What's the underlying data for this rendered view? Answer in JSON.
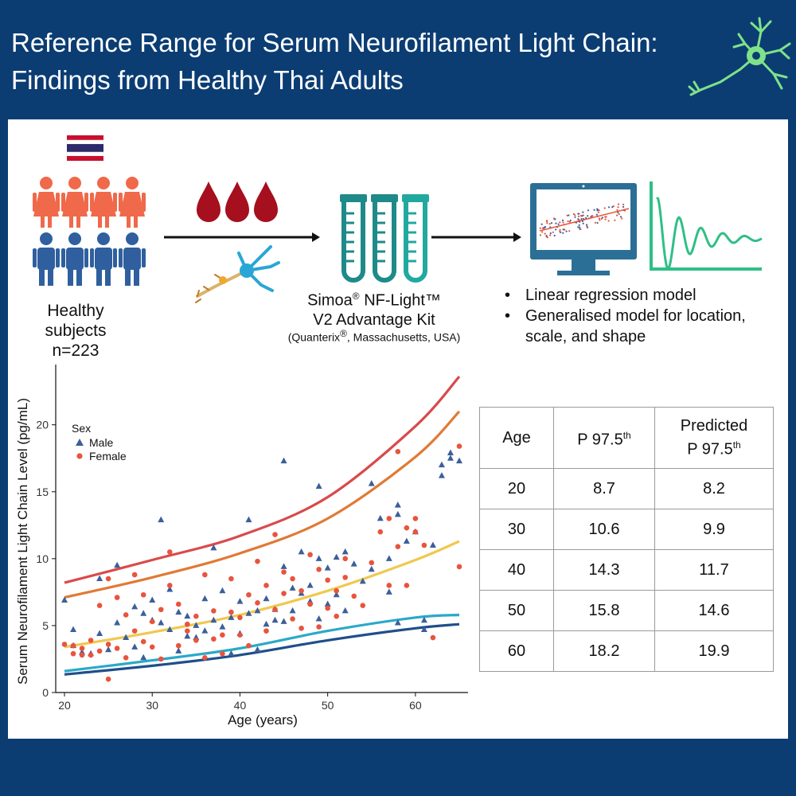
{
  "header": {
    "title_line1": "Reference Range for Serum Neurofilament Light Chain:",
    "title_line2": "Findings from Healthy Thai Adults"
  },
  "workflow": {
    "subjects_label": "Healthy subjects",
    "subjects_n": "n=223",
    "kit_line1_a": "Simoa",
    "kit_line1_reg": "®",
    "kit_line1_b": " NF-Light™",
    "kit_line2": "V2 Advantage Kit",
    "kit_maker_a": "(Quanterix",
    "kit_maker_reg": "®",
    "kit_maker_b": ", Massachusetts, USA)",
    "methods": [
      "Linear regression model",
      "Generalised model for location, scale, and shape"
    ]
  },
  "colors": {
    "background": "#0b3d73",
    "female_icon": "#f0694a",
    "male_icon": "#2f5f9e",
    "blood": "#a50f1e",
    "tube": "#1e8a8a",
    "monitor": "#2b6f96",
    "wave": "#2fbf86"
  },
  "icons": [
    "thai-flag-icon",
    "female-person-icon",
    "male-person-icon",
    "blood-drop-icon",
    "neuron-icon",
    "test-tube-icon",
    "monitor-icon",
    "waveform-icon",
    "arrow-icon"
  ],
  "chart_data": {
    "type": "scatter",
    "xlabel": "Age (years)",
    "ylabel": "Serum Neurofilament Light Chain Level (pg/mL)",
    "xlim": [
      19,
      66
    ],
    "ylim": [
      0,
      24.5
    ],
    "xticks": [
      20,
      30,
      40,
      50,
      60
    ],
    "yticks": [
      0,
      5,
      10,
      15,
      20
    ],
    "legend": {
      "title": "Sex",
      "placement": "top-left"
    },
    "series": [
      {
        "name": "Male",
        "marker": "triangle",
        "color": "#3b5f9a",
        "points": [
          [
            20,
            6.9
          ],
          [
            21,
            4.7
          ],
          [
            21,
            3.5
          ],
          [
            22,
            3.0
          ],
          [
            23,
            2.9
          ],
          [
            24,
            8.5
          ],
          [
            24,
            4.4
          ],
          [
            25,
            3.2
          ],
          [
            26,
            9.5
          ],
          [
            26,
            5.2
          ],
          [
            27,
            4.1
          ],
          [
            28,
            6.4
          ],
          [
            28,
            3.4
          ],
          [
            29,
            5.9
          ],
          [
            29,
            2.6
          ],
          [
            30,
            6.9
          ],
          [
            30,
            5.4
          ],
          [
            31,
            12.9
          ],
          [
            31,
            5.2
          ],
          [
            32,
            7.7
          ],
          [
            32,
            4.7
          ],
          [
            33,
            6.0
          ],
          [
            33,
            3.1
          ],
          [
            34,
            4.2
          ],
          [
            34,
            5.7
          ],
          [
            35,
            5.0
          ],
          [
            35,
            4.1
          ],
          [
            36,
            7.0
          ],
          [
            36,
            4.6
          ],
          [
            37,
            10.8
          ],
          [
            37,
            5.4
          ],
          [
            38,
            7.6
          ],
          [
            38,
            4.9
          ],
          [
            39,
            5.6
          ],
          [
            39,
            2.9
          ],
          [
            40,
            6.8
          ],
          [
            40,
            4.4
          ],
          [
            41,
            12.9
          ],
          [
            41,
            5.9
          ],
          [
            42,
            6.1
          ],
          [
            42,
            3.2
          ],
          [
            43,
            7.0
          ],
          [
            43,
            5.1
          ],
          [
            44,
            5.4
          ],
          [
            44,
            6.2
          ],
          [
            45,
            17.3
          ],
          [
            45,
            9.4
          ],
          [
            45,
            5.3
          ],
          [
            46,
            7.8
          ],
          [
            46,
            6.1
          ],
          [
            47,
            10.5
          ],
          [
            47,
            7.4
          ],
          [
            48,
            8.0
          ],
          [
            48,
            6.8
          ],
          [
            49,
            15.4
          ],
          [
            49,
            10.0
          ],
          [
            49,
            5.5
          ],
          [
            50,
            9.3
          ],
          [
            50,
            6.6
          ],
          [
            51,
            10.1
          ],
          [
            51,
            7.3
          ],
          [
            52,
            10.5
          ],
          [
            52,
            6.1
          ],
          [
            53,
            9.6
          ],
          [
            54,
            8.3
          ],
          [
            55,
            15.6
          ],
          [
            55,
            9.2
          ],
          [
            56,
            13.0
          ],
          [
            57,
            10.0
          ],
          [
            57,
            7.5
          ],
          [
            58,
            14.0
          ],
          [
            58,
            13.3
          ],
          [
            58,
            5.2
          ],
          [
            59,
            11.3
          ],
          [
            60,
            12.0
          ],
          [
            61,
            5.4
          ],
          [
            61,
            4.7
          ],
          [
            62,
            11.0
          ],
          [
            63,
            17.0
          ],
          [
            63,
            16.2
          ],
          [
            64,
            17.5
          ],
          [
            64,
            17.9
          ],
          [
            65,
            17.3
          ]
        ]
      },
      {
        "name": "Female",
        "marker": "circle",
        "color": "#e8543d",
        "points": [
          [
            20,
            3.6
          ],
          [
            21,
            3.5
          ],
          [
            21,
            2.9
          ],
          [
            22,
            2.8
          ],
          [
            22,
            3.3
          ],
          [
            23,
            3.9
          ],
          [
            23,
            2.8
          ],
          [
            24,
            3.1
          ],
          [
            24,
            6.5
          ],
          [
            25,
            3.6
          ],
          [
            25,
            1.0
          ],
          [
            25,
            8.5
          ],
          [
            26,
            3.3
          ],
          [
            26,
            7.1
          ],
          [
            27,
            2.6
          ],
          [
            27,
            5.8
          ],
          [
            28,
            4.6
          ],
          [
            28,
            8.8
          ],
          [
            29,
            3.8
          ],
          [
            29,
            7.3
          ],
          [
            30,
            3.4
          ],
          [
            30,
            5.3
          ],
          [
            31,
            6.2
          ],
          [
            31,
            2.5
          ],
          [
            32,
            10.5
          ],
          [
            32,
            8.0
          ],
          [
            33,
            3.5
          ],
          [
            33,
            6.6
          ],
          [
            34,
            5.1
          ],
          [
            34,
            4.6
          ],
          [
            35,
            3.9
          ],
          [
            35,
            5.7
          ],
          [
            36,
            2.6
          ],
          [
            36,
            8.8
          ],
          [
            37,
            4.0
          ],
          [
            37,
            6.1
          ],
          [
            38,
            4.3
          ],
          [
            38,
            2.9
          ],
          [
            39,
            6.0
          ],
          [
            39,
            8.5
          ],
          [
            40,
            5.6
          ],
          [
            40,
            4.3
          ],
          [
            41,
            3.5
          ],
          [
            41,
            7.3
          ],
          [
            42,
            6.7
          ],
          [
            42,
            9.8
          ],
          [
            43,
            4.6
          ],
          [
            43,
            8.0
          ],
          [
            44,
            6.2
          ],
          [
            44,
            11.8
          ],
          [
            45,
            7.4
          ],
          [
            45,
            9.0
          ],
          [
            46,
            5.5
          ],
          [
            46,
            8.5
          ],
          [
            47,
            7.6
          ],
          [
            47,
            4.8
          ],
          [
            48,
            10.3
          ],
          [
            48,
            6.6
          ],
          [
            49,
            9.2
          ],
          [
            49,
            4.9
          ],
          [
            50,
            8.4
          ],
          [
            50,
            6.3
          ],
          [
            51,
            5.7
          ],
          [
            51,
            7.6
          ],
          [
            52,
            10.0
          ],
          [
            52,
            8.6
          ],
          [
            53,
            7.2
          ],
          [
            54,
            6.5
          ],
          [
            55,
            9.7
          ],
          [
            56,
            12.0
          ],
          [
            57,
            8.0
          ],
          [
            57,
            13.0
          ],
          [
            58,
            18.0
          ],
          [
            58,
            10.9
          ],
          [
            59,
            12.3
          ],
          [
            59,
            8.0
          ],
          [
            60,
            13.0
          ],
          [
            60,
            12.0
          ],
          [
            61,
            11.0
          ],
          [
            62,
            4.1
          ],
          [
            65,
            18.4
          ],
          [
            65,
            9.4
          ]
        ]
      }
    ],
    "curves": [
      {
        "color": "#d94a4a",
        "x": [
          20,
          30,
          40,
          50,
          60,
          65
        ],
        "y": [
          8.2,
          9.9,
          11.7,
          14.6,
          19.9,
          23.6
        ]
      },
      {
        "color": "#e07a35",
        "x": [
          20,
          30,
          40,
          50,
          60,
          65
        ],
        "y": [
          7.1,
          8.6,
          10.4,
          13.0,
          17.6,
          21.0
        ]
      },
      {
        "color": "#f0c84e",
        "x": [
          20,
          30,
          40,
          50,
          60,
          65
        ],
        "y": [
          3.4,
          4.5,
          5.8,
          7.6,
          9.9,
          11.3
        ]
      },
      {
        "color": "#2aa9c9",
        "x": [
          20,
          30,
          40,
          50,
          60,
          65
        ],
        "y": [
          1.6,
          2.4,
          3.3,
          4.6,
          5.6,
          5.8
        ]
      },
      {
        "color": "#1f4f8a",
        "x": [
          20,
          30,
          40,
          50,
          60,
          65
        ],
        "y": [
          1.35,
          2.0,
          2.8,
          3.9,
          4.8,
          5.1
        ]
      }
    ]
  },
  "table": {
    "headers": {
      "age": "Age",
      "p975_a": "P 97.5",
      "p975_sup": "th",
      "pred_line1": "Predicted",
      "pred_a": "P 97.5",
      "pred_sup": "th"
    },
    "rows": [
      {
        "age": "20",
        "p975": "8.7",
        "pred": "8.2"
      },
      {
        "age": "30",
        "p975": "10.6",
        "pred": "9.9"
      },
      {
        "age": "40",
        "p975": "14.3",
        "pred": "11.7"
      },
      {
        "age": "50",
        "p975": "15.8",
        "pred": "14.6"
      },
      {
        "age": "60",
        "p975": "18.2",
        "pred": "19.9"
      }
    ]
  }
}
